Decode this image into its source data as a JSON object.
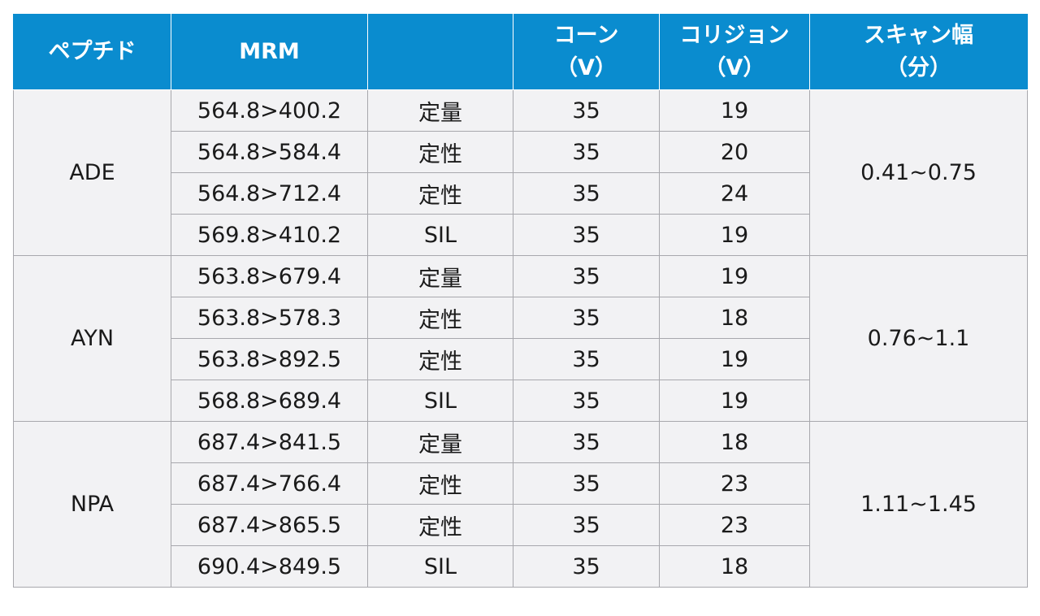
{
  "table": {
    "headers": {
      "peptide": "ペプチド",
      "mrm": "MRM",
      "type": "",
      "cone_line1": "コーン",
      "cone_line2": "（V）",
      "collision_line1": "コリジョン",
      "collision_line2": "（V）",
      "scan_line1": "スキャン幅",
      "scan_line2": "（分）"
    },
    "groups": [
      {
        "peptide": "ADE",
        "scan_window": "0.41~0.75",
        "rows": [
          {
            "mrm": "564.8>400.2",
            "type": "定量",
            "cone": "35",
            "collision": "19"
          },
          {
            "mrm": "564.8>584.4",
            "type": "定性",
            "cone": "35",
            "collision": "20"
          },
          {
            "mrm": "564.8>712.4",
            "type": "定性",
            "cone": "35",
            "collision": "24"
          },
          {
            "mrm": "569.8>410.2",
            "type": "SIL",
            "cone": "35",
            "collision": "19"
          }
        ]
      },
      {
        "peptide": "AYN",
        "scan_window": "0.76~1.1",
        "rows": [
          {
            "mrm": "563.8>679.4",
            "type": "定量",
            "cone": "35",
            "collision": "19"
          },
          {
            "mrm": "563.8>578.3",
            "type": "定性",
            "cone": "35",
            "collision": "18"
          },
          {
            "mrm": "563.8>892.5",
            "type": "定性",
            "cone": "35",
            "collision": "19"
          },
          {
            "mrm": "568.8>689.4",
            "type": "SIL",
            "cone": "35",
            "collision": "19"
          }
        ]
      },
      {
        "peptide": "NPA",
        "scan_window": "1.11~1.45",
        "rows": [
          {
            "mrm": "687.4>841.5",
            "type": "定量",
            "cone": "35",
            "collision": "18"
          },
          {
            "mrm": "687.4>766.4",
            "type": "定性",
            "cone": "35",
            "collision": "23"
          },
          {
            "mrm": "687.4>865.5",
            "type": "定性",
            "cone": "35",
            "collision": "23"
          },
          {
            "mrm": "690.4>849.5",
            "type": "SIL",
            "cone": "35",
            "collision": "18"
          }
        ]
      }
    ]
  },
  "colors": {
    "header_bg": "#0a8ccf",
    "header_text": "#ffffff",
    "body_bg": "#f2f2f4",
    "grid": "#a8a8ad"
  }
}
